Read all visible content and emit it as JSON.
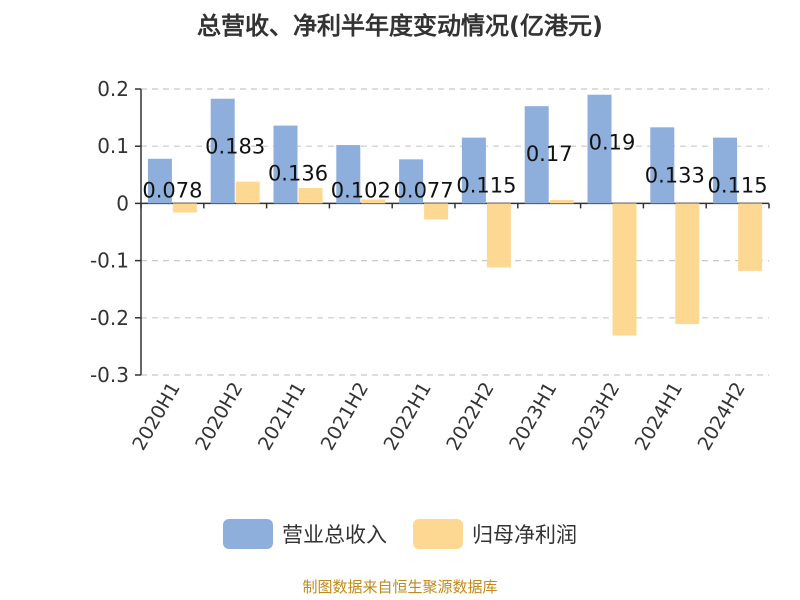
{
  "chart_data": {
    "type": "bar",
    "title": "总营收、净利半年度变动情况(亿港元)",
    "categories": [
      "2020H1",
      "2020H2",
      "2021H1",
      "2021H2",
      "2022H1",
      "2022H2",
      "2023H1",
      "2023H2",
      "2024H1",
      "2024H2"
    ],
    "series": [
      {
        "name": "营业总收入",
        "color": "#8eaedb",
        "values": [
          0.078,
          0.183,
          0.136,
          0.102,
          0.077,
          0.115,
          0.17,
          0.19,
          0.133,
          0.115
        ],
        "labels": [
          "0.078",
          "0.183",
          "0.136",
          "0.102",
          "0.077",
          "0.115",
          "0.17",
          "0.19",
          "0.133",
          "0.115"
        ]
      },
      {
        "name": "归母净利润",
        "color": "#fdd893",
        "values": [
          -0.016,
          0.038,
          0.027,
          0.007,
          -0.028,
          -0.112,
          0.006,
          -0.231,
          -0.211,
          -0.118
        ]
      }
    ],
    "ylim": [
      -0.3,
      0.2
    ],
    "yticks": [
      0.2,
      0.1,
      0,
      -0.1,
      -0.2,
      -0.3
    ],
    "ytick_labels": [
      "0.2",
      "0.1",
      "0",
      "-0.1",
      "-0.2",
      "-0.3"
    ],
    "grid": true,
    "legend_position": "bottom-center"
  },
  "source_text": "制图数据来自恒生聚源数据库"
}
